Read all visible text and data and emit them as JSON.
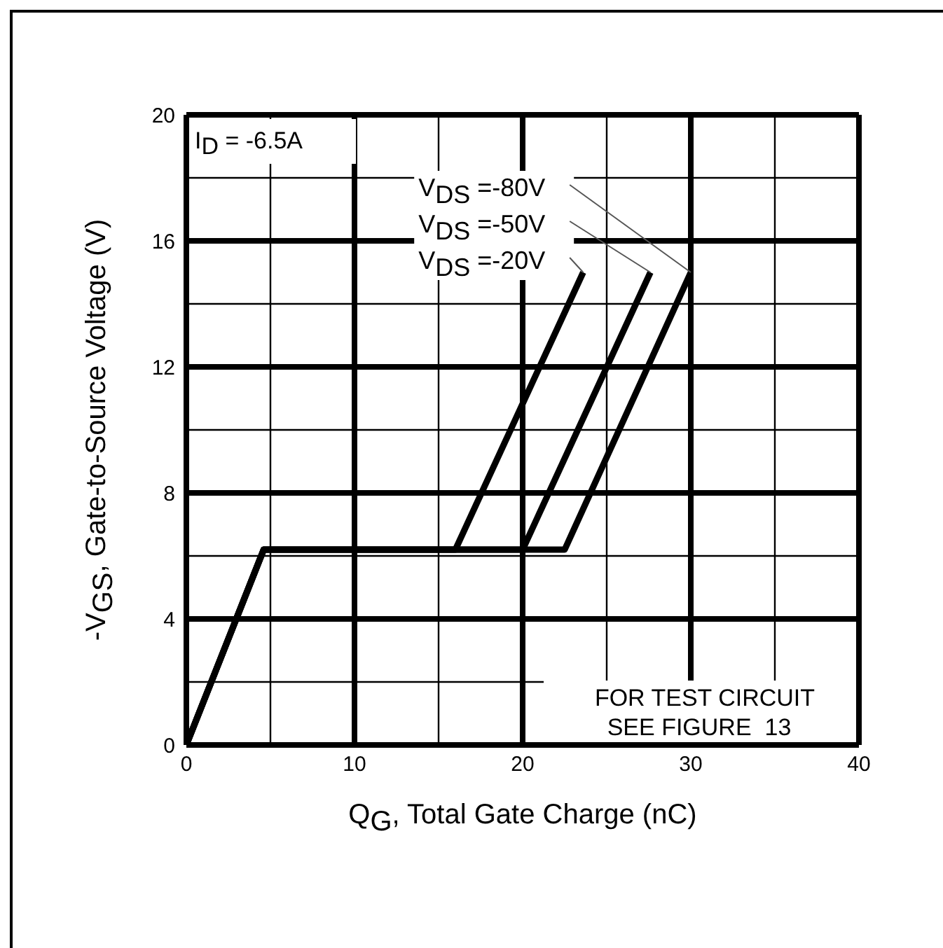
{
  "chart_data": {
    "type": "line",
    "xlabel": "Q$_{G}$, Total Gate Charge (nC)",
    "ylabel": "-V$_{GS}$, Gate-to-Source Voltage (V)",
    "series": [
      {
        "name": "V$_{DS}$ =-20V",
        "color": "#000000",
        "x": [
          0,
          4.6,
          16,
          23.6
        ],
        "values": [
          0,
          6.2,
          6.2,
          15
        ]
      },
      {
        "name": "V$_{DS}$ =-50V",
        "color": "#000000",
        "x": [
          0,
          4.6,
          20,
          27.6
        ],
        "values": [
          0,
          6.2,
          6.2,
          15
        ]
      },
      {
        "name": "V$_{DS}$ =-80V",
        "color": "#000000",
        "x": [
          0,
          4.6,
          22.5,
          30
        ],
        "values": [
          0,
          6.2,
          6.2,
          15
        ]
      }
    ],
    "annotations": [
      "I$_{D}$ = -6.5A",
      "FOR TEST CIRCUIT\nSEE FIGURE  13"
    ],
    "xlim": [
      0,
      40
    ],
    "xticks": [
      0,
      {
        "value": 5,
        "label": null
      },
      10,
      {
        "value": 15,
        "label": null
      },
      20,
      {
        "value": 25,
        "label": null
      },
      30,
      {
        "value": 35,
        "label": null
      },
      40
    ],
    "ylim": [
      0,
      20
    ],
    "yticks": [
      0,
      {
        "value": 2,
        "label": null
      },
      4,
      {
        "value": 6,
        "label": null
      },
      8,
      {
        "value": 10,
        "label": null
      },
      12,
      {
        "value": 14,
        "label": null
      },
      16,
      {
        "value": 18,
        "label": null
      },
      20
    ],
    "grid": true,
    "marker": "none",
    "line_style": "solid"
  }
}
